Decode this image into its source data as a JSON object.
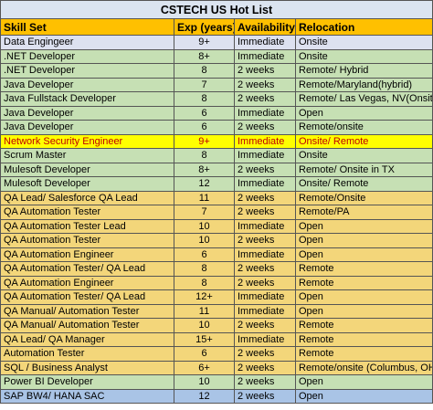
{
  "sheet": {
    "title": "CSTECH US Hot List",
    "columns": [
      "Skill Set",
      "Exp (years)",
      "Availability",
      "Relocation"
    ],
    "rows": [
      {
        "skill": "Data Engingeer",
        "exp": "9+",
        "availability": "Immediate",
        "relocation": "Onsite",
        "fill": "#dde1f0"
      },
      {
        "skill": ".NET Developer",
        "exp": "8+",
        "availability": "Immediate",
        "relocation": "Onsite",
        "fill": "#c6e0b4"
      },
      {
        "skill": ".NET Developer",
        "exp": "8",
        "availability": "2 weeks",
        "relocation": "Remote/ Hybrid",
        "fill": "#c6e0b4"
      },
      {
        "skill": "Java Developer",
        "exp": "7",
        "availability": "2 weeks",
        "relocation": "Remote/Maryland(hybrid)",
        "fill": "#c6e0b4"
      },
      {
        "skill": "Java Fullstack Developer",
        "exp": "8",
        "availability": "2 weeks",
        "relocation": "Remote/ Las Vegas, NV(Onsite)",
        "fill": "#c6e0b4"
      },
      {
        "skill": "Java Developer",
        "exp": "6",
        "availability": "Immediate",
        "relocation": "Open",
        "fill": "#c6e0b4"
      },
      {
        "skill": "Java Developer",
        "exp": "6",
        "availability": "2 weeks",
        "relocation": "Remote/onsite",
        "fill": "#c6e0b4"
      },
      {
        "skill": "Network Security Engineer",
        "exp": "9+",
        "availability": "Immediate",
        "relocation": "Onsite/ Remote",
        "fill": "#ffff00",
        "text_color": "#c00000"
      },
      {
        "skill": "Scrum Master",
        "exp": "8",
        "availability": "Immediate",
        "relocation": "Onsite",
        "fill": "#c6e0b4"
      },
      {
        "skill": "Mulesoft Developer",
        "exp": "8+",
        "availability": "2 weeks",
        "relocation": "Remote/ Onsite in TX",
        "fill": "#c6e0b4"
      },
      {
        "skill": "Mulesoft Developer",
        "exp": "12",
        "availability": "Immediate",
        "relocation": "Onsite/ Remote",
        "fill": "#c6e0b4"
      },
      {
        "skill": "QA Lead/ Salesforce QA Lead",
        "exp": "11",
        "availability": "2 weeks",
        "relocation": "Remote/Onsite",
        "fill": "#f3d67a"
      },
      {
        "skill": "QA Automation Tester",
        "exp": "7",
        "availability": "2 weeks",
        "relocation": "Remote/PA",
        "fill": "#f3d67a"
      },
      {
        "skill": "QA Automation Tester Lead",
        "exp": "10",
        "availability": "Immediate",
        "relocation": "Open",
        "fill": "#f3d67a"
      },
      {
        "skill": "QA Automation Tester",
        "exp": "10",
        "availability": "2 weeks",
        "relocation": "Open",
        "fill": "#f3d67a"
      },
      {
        "skill": "QA Automation Engineer",
        "exp": "6",
        "availability": "Immediate",
        "relocation": "Open",
        "fill": "#f3d67a"
      },
      {
        "skill": "QA Automation Tester/ QA Lead",
        "exp": "8",
        "availability": "2 weeks",
        "relocation": "Remote",
        "fill": "#f3d67a"
      },
      {
        "skill": "QA Automation Engineer",
        "exp": "8",
        "availability": "2 weeks",
        "relocation": "Remote",
        "fill": "#f3d67a"
      },
      {
        "skill": "QA Automation Tester/ QA Lead",
        "exp": "12+",
        "availability": "Immediate",
        "relocation": "Open",
        "fill": "#f3d67a"
      },
      {
        "skill": "QA Manual/ Automation Tester",
        "exp": "11",
        "availability": "Immediate",
        "relocation": "Open",
        "fill": "#f3d67a"
      },
      {
        "skill": "QA Manual/ Automation Tester",
        "exp": "10",
        "availability": "2 weeks",
        "relocation": "Remote",
        "fill": "#f3d67a"
      },
      {
        "skill": "QA Lead/ QA Manager",
        "exp": "15+",
        "availability": "Immediate",
        "relocation": "Remote",
        "fill": "#f3d67a"
      },
      {
        "skill": "Automation Tester",
        "exp": "6",
        "availability": "2 weeks",
        "relocation": "Remote",
        "fill": "#f3d67a"
      },
      {
        "skill": "SQL / Business Analyst",
        "exp": "6+",
        "availability": "2 weeks",
        "relocation": "Remote/onsite (Columbus, OH)",
        "fill": "#f3d67a"
      },
      {
        "skill": "Power BI Developer",
        "exp": "10",
        "availability": "2 weeks",
        "relocation": "Open",
        "fill": "#c6e0b4"
      },
      {
        "skill": "SAP BW4/ HANA SAC",
        "exp": "12",
        "availability": "2 weeks",
        "relocation": "Open",
        "fill": "#a9c4e6"
      }
    ]
  }
}
